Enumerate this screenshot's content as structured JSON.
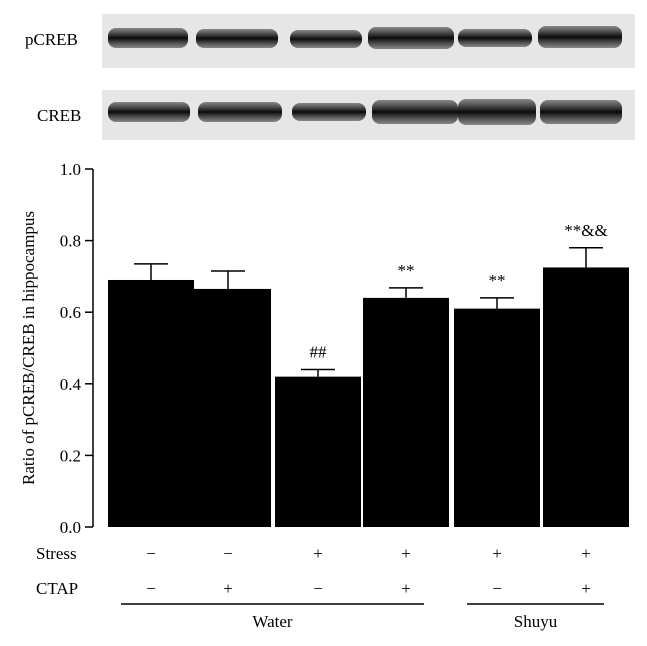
{
  "blots": [
    {
      "label": "pCREB"
    },
    {
      "label": "CREB"
    }
  ],
  "chart_data": {
    "type": "bar",
    "ylabel": "Ratio of pCREB/CREB in hippocampus",
    "ylim": [
      0,
      1.0
    ],
    "yticks": [
      "0.0",
      "0.2",
      "0.4",
      "0.6",
      "0.8",
      "1.0"
    ],
    "values": [
      0.69,
      0.665,
      0.42,
      0.64,
      0.61,
      0.725
    ],
    "errors": [
      0.045,
      0.05,
      0.02,
      0.028,
      0.03,
      0.055
    ],
    "significance": [
      "",
      "",
      "##",
      "**",
      "**",
      "**&&"
    ],
    "conditions": [
      {
        "name": "Stress",
        "values": [
          "−",
          "−",
          "+",
          "+",
          "+",
          "+"
        ]
      },
      {
        "name": "CTAP",
        "values": [
          "−",
          "+",
          "−",
          "+",
          "−",
          "+"
        ]
      }
    ],
    "groups": [
      {
        "label": "Water",
        "from": 0,
        "to": 3
      },
      {
        "label": "Shuyu",
        "from": 4,
        "to": 5
      }
    ],
    "bar_color": "#000000"
  }
}
